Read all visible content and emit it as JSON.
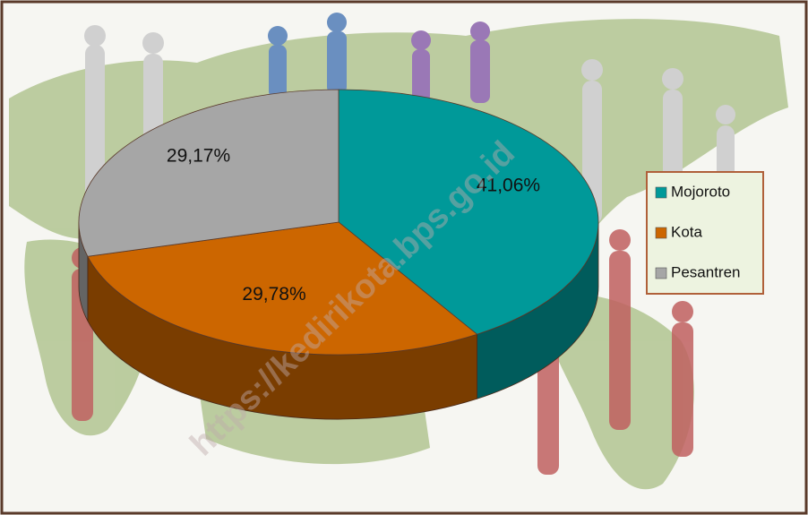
{
  "chart_data": {
    "type": "pie3d",
    "categories": [
      "Mojoroto",
      "Kota",
      "Pesantren"
    ],
    "values": [
      41.06,
      29.78,
      29.17
    ],
    "value_labels": [
      "41,06%",
      "29,78%",
      "29,17%"
    ],
    "colors": [
      "#009999",
      "#cc6600",
      "#a6a6a6"
    ],
    "legend": "right",
    "annotation": "https://kedirikota.bps.go.id"
  }
}
